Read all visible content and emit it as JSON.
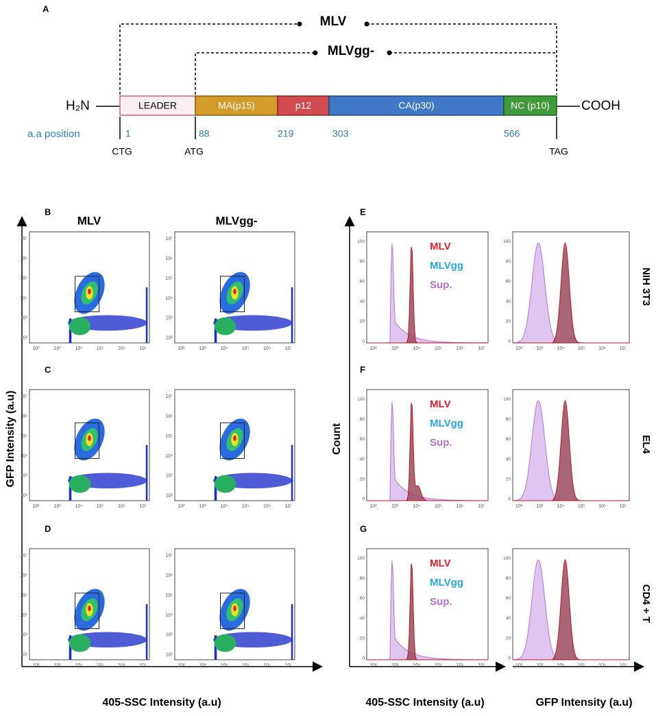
{
  "panel_a": {
    "label": "A",
    "mlv": "MLV",
    "mlvgg": "MLVgg-",
    "n_term": "H₂N",
    "c_term": "COOH",
    "domains": [
      "LEADER",
      "MA(p15)",
      "p12",
      "CA(p30)",
      "NC (p10)"
    ],
    "position_label": "a.a position",
    "positions": [
      "1",
      "88",
      "219",
      "303",
      "566"
    ],
    "codons": [
      "CTG",
      "ATG",
      "TAG"
    ]
  },
  "scatter": {
    "row_labels": [
      "B",
      "C",
      "D"
    ],
    "column_headers": [
      "MLV",
      "MLVgg-"
    ],
    "y_axis_label": "GFP Intensity (a.u)",
    "x_axis_label": "405-SSC Intensity (a.u)",
    "ticks": [
      "10²",
      "10³",
      "10⁴",
      "10⁵",
      "10⁶",
      "10⁷"
    ]
  },
  "histograms": {
    "row_labels": [
      "E",
      "F",
      "G"
    ],
    "legend": [
      "MLV",
      "MLVgg",
      "Sup."
    ],
    "cell_lines": [
      "NIH 3T3",
      "EL4",
      "CD4 + T"
    ],
    "y_axis_label": "Count",
    "x_axis_labels": [
      "405-SSC Intensity (a.u)",
      "GFP Intensity (a.u)"
    ],
    "yticks": [
      "0",
      "20",
      "40",
      "60",
      "80",
      "100"
    ]
  }
}
